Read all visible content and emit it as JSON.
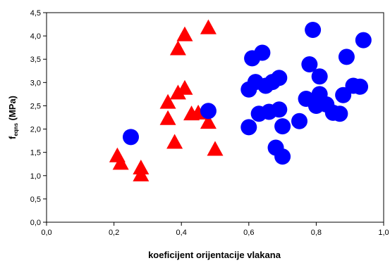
{
  "chart_data": {
    "type": "scatter",
    "xlabel": "koeficijent orijentacije vlakana",
    "ylabel": {
      "main": "f",
      "sub": "eqns",
      "rest": " (MPa)"
    },
    "xlim": [
      0,
      1
    ],
    "ylim": [
      0,
      4.5
    ],
    "x_ticks": [
      "0,0",
      "0,2",
      "0,4",
      "0,6",
      "0,8",
      "1,0"
    ],
    "y_ticks": [
      "0,0",
      "0,5",
      "1,0",
      "1,5",
      "2,0",
      "2,5",
      "3,0",
      "3,5",
      "4,0",
      "4,5"
    ],
    "grid": false,
    "legend": "none",
    "series": [
      {
        "marker": "triangle",
        "color": "#ff0000",
        "points": [
          {
            "x": 0.21,
            "y": 1.43
          },
          {
            "x": 0.22,
            "y": 1.27
          },
          {
            "x": 0.28,
            "y": 1.17
          },
          {
            "x": 0.28,
            "y": 1.02
          },
          {
            "x": 0.36,
            "y": 2.58
          },
          {
            "x": 0.36,
            "y": 2.23
          },
          {
            "x": 0.38,
            "y": 1.72
          },
          {
            "x": 0.39,
            "y": 2.78
          },
          {
            "x": 0.39,
            "y": 3.73
          },
          {
            "x": 0.41,
            "y": 4.03
          },
          {
            "x": 0.41,
            "y": 2.88
          },
          {
            "x": 0.43,
            "y": 2.33
          },
          {
            "x": 0.45,
            "y": 2.35
          },
          {
            "x": 0.48,
            "y": 4.18
          },
          {
            "x": 0.48,
            "y": 2.15
          },
          {
            "x": 0.5,
            "y": 1.57
          }
        ]
      },
      {
        "marker": "circle",
        "color": "#0000ff",
        "points": [
          {
            "x": 0.25,
            "y": 1.83
          },
          {
            "x": 0.48,
            "y": 2.39
          },
          {
            "x": 0.6,
            "y": 2.85
          },
          {
            "x": 0.6,
            "y": 2.04
          },
          {
            "x": 0.61,
            "y": 3.52
          },
          {
            "x": 0.62,
            "y": 3.01
          },
          {
            "x": 0.63,
            "y": 2.33
          },
          {
            "x": 0.64,
            "y": 3.64
          },
          {
            "x": 0.65,
            "y": 2.93
          },
          {
            "x": 0.66,
            "y": 2.37
          },
          {
            "x": 0.67,
            "y": 3.01
          },
          {
            "x": 0.69,
            "y": 3.1
          },
          {
            "x": 0.69,
            "y": 2.42
          },
          {
            "x": 0.68,
            "y": 1.6
          },
          {
            "x": 0.7,
            "y": 1.41
          },
          {
            "x": 0.7,
            "y": 2.06
          },
          {
            "x": 0.75,
            "y": 2.17
          },
          {
            "x": 0.77,
            "y": 2.65
          },
          {
            "x": 0.78,
            "y": 3.39
          },
          {
            "x": 0.79,
            "y": 4.13
          },
          {
            "x": 0.8,
            "y": 2.5
          },
          {
            "x": 0.81,
            "y": 2.75
          },
          {
            "x": 0.81,
            "y": 3.13
          },
          {
            "x": 0.83,
            "y": 2.53
          },
          {
            "x": 0.85,
            "y": 2.35
          },
          {
            "x": 0.87,
            "y": 2.33
          },
          {
            "x": 0.88,
            "y": 2.73
          },
          {
            "x": 0.89,
            "y": 3.55
          },
          {
            "x": 0.91,
            "y": 2.93
          },
          {
            "x": 0.93,
            "y": 2.91
          },
          {
            "x": 0.94,
            "y": 3.91
          }
        ]
      }
    ]
  }
}
